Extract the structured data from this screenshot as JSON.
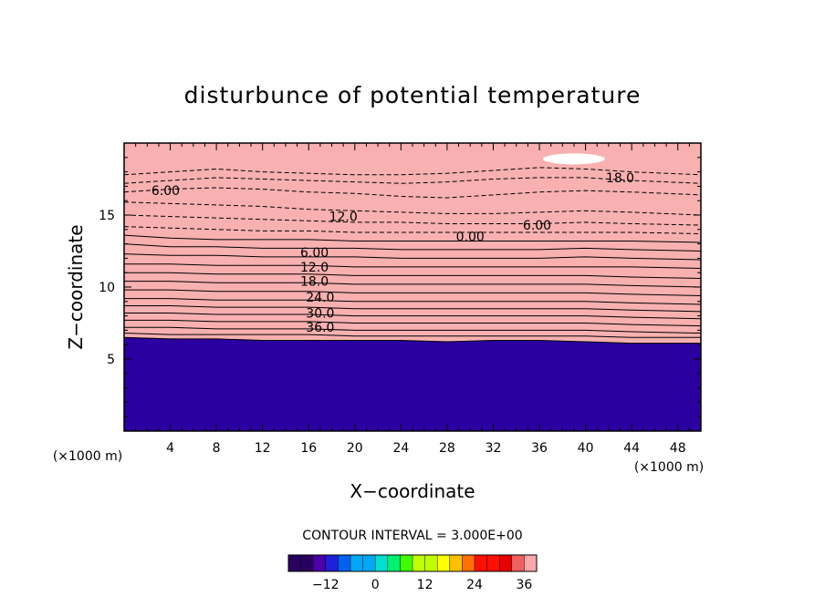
{
  "chart_data": {
    "type": "heatmap",
    "title": "disturbunce of potential temperature",
    "xlabel": "X−coordinate",
    "ylabel": "Z−coordinate",
    "x_unit": "(×1000 m)",
    "z_unit": "(×1000 m)",
    "xlim": [
      0,
      50
    ],
    "ylim": [
      0,
      20
    ],
    "x_ticks": [
      4,
      8,
      12,
      16,
      20,
      24,
      28,
      32,
      36,
      40,
      44,
      48
    ],
    "y_ticks": [
      5,
      10,
      15
    ],
    "contour_interval_text": "CONTOUR INTERVAL = 3.000E+00",
    "colorbar": {
      "min": -21,
      "max": 39,
      "tick_values": [
        -12,
        0,
        12,
        24,
        36
      ],
      "tick_labels": [
        "−12",
        "0",
        "12",
        "24",
        "36"
      ],
      "colors": [
        "#2a005f",
        "#4b00a8",
        "#2020d8",
        "#0060f0",
        "#00a8f8",
        "#00e0d0",
        "#00f070",
        "#40ff00",
        "#c0ff00",
        "#ffff00",
        "#ffc000",
        "#ff7000",
        "#ff1000",
        "#e80000",
        "#f06060",
        "#f8a8a8"
      ]
    },
    "contour_labels": [
      {
        "text": "6.00",
        "x": 3.6,
        "z": 16.7
      },
      {
        "text": "12.0",
        "x": 19.0,
        "z": 14.9
      },
      {
        "text": "18.0",
        "x": 43.0,
        "z": 17.6
      },
      {
        "text": "6.00",
        "x": 35.8,
        "z": 14.3
      },
      {
        "text": "0.00",
        "x": 30.0,
        "z": 13.5
      },
      {
        "text": "6.00",
        "x": 16.5,
        "z": 12.4
      },
      {
        "text": "12.0",
        "x": 16.5,
        "z": 11.4
      },
      {
        "text": "18.0",
        "x": 16.5,
        "z": 10.4
      },
      {
        "text": "24.0",
        "x": 17.0,
        "z": 9.3
      },
      {
        "text": "30.0",
        "x": 17.0,
        "z": 8.2
      },
      {
        "text": "36.0",
        "x": 17.0,
        "z": 7.2
      }
    ],
    "bands": [
      {
        "value": -18,
        "color": "#3a0088",
        "z": [
          17.8,
          18.0,
          18.2,
          18.0,
          17.9,
          17.8,
          17.8,
          17.9,
          18.1,
          18.3,
          18.2,
          18.0,
          17.8
        ]
      },
      {
        "value": -15,
        "color": "#5a10b8",
        "z": [
          17.2,
          17.4,
          17.6,
          17.5,
          17.4,
          17.3,
          17.2,
          17.3,
          17.5,
          17.6,
          17.6,
          17.4,
          17.2
        ]
      },
      {
        "value": -12,
        "color": "#1a2ad8",
        "z": [
          16.6,
          16.8,
          16.9,
          16.8,
          16.6,
          16.5,
          16.3,
          16.2,
          16.4,
          16.6,
          16.7,
          16.6,
          16.4
        ]
      },
      {
        "value": -9,
        "color": "#0a60f0",
        "z": [
          15.9,
          15.8,
          15.7,
          15.6,
          15.4,
          15.3,
          15.2,
          15.1,
          15.1,
          15.2,
          15.3,
          15.2,
          15.0
        ]
      },
      {
        "value": -6,
        "color": "#0a98f8",
        "z": [
          15.0,
          14.9,
          14.8,
          14.7,
          14.6,
          14.5,
          14.5,
          14.4,
          14.4,
          14.4,
          14.5,
          14.4,
          14.3
        ]
      },
      {
        "value": -3,
        "color": "#00c8f0",
        "z": [
          14.2,
          14.1,
          14.0,
          13.9,
          13.9,
          13.8,
          13.8,
          13.8,
          13.8,
          13.8,
          13.8,
          13.8,
          13.7
        ]
      },
      {
        "value": 0,
        "color": "#00e0b0",
        "z": [
          13.6,
          13.4,
          13.3,
          13.3,
          13.3,
          13.2,
          13.2,
          13.2,
          13.2,
          13.2,
          13.2,
          13.2,
          13.1
        ]
      },
      {
        "value": 3,
        "color": "#00f070",
        "z": [
          13.0,
          12.8,
          12.8,
          12.7,
          12.7,
          12.7,
          12.6,
          12.6,
          12.6,
          12.6,
          12.7,
          12.6,
          12.5
        ]
      },
      {
        "value": 6,
        "color": "#20ff20",
        "z": [
          12.3,
          12.2,
          12.2,
          12.1,
          12.1,
          12.1,
          12.0,
          12.0,
          12.0,
          12.0,
          12.1,
          12.0,
          11.9
        ]
      },
      {
        "value": 9,
        "color": "#70ff00",
        "z": [
          11.6,
          11.6,
          11.5,
          11.5,
          11.5,
          11.4,
          11.4,
          11.4,
          11.4,
          11.4,
          11.4,
          11.4,
          11.3
        ]
      },
      {
        "value": 12,
        "color": "#b0ff00",
        "z": [
          11.0,
          11.0,
          10.9,
          10.9,
          10.9,
          10.8,
          10.8,
          10.8,
          10.8,
          10.8,
          10.8,
          10.7,
          10.6
        ]
      },
      {
        "value": 15,
        "color": "#e8ff00",
        "z": [
          10.4,
          10.4,
          10.3,
          10.3,
          10.3,
          10.2,
          10.2,
          10.2,
          10.2,
          10.2,
          10.2,
          10.1,
          10.0
        ]
      },
      {
        "value": 18,
        "color": "#ffe000",
        "z": [
          9.8,
          9.8,
          9.7,
          9.7,
          9.7,
          9.6,
          9.6,
          9.6,
          9.6,
          9.6,
          9.6,
          9.5,
          9.4
        ]
      },
      {
        "value": 21,
        "color": "#ffb000",
        "z": [
          9.2,
          9.2,
          9.1,
          9.1,
          9.1,
          9.0,
          9.0,
          9.0,
          9.0,
          9.0,
          9.0,
          8.9,
          8.8
        ]
      },
      {
        "value": 24,
        "color": "#ff8000",
        "z": [
          8.7,
          8.7,
          8.6,
          8.6,
          8.6,
          8.5,
          8.5,
          8.5,
          8.5,
          8.5,
          8.5,
          8.4,
          8.3
        ]
      },
      {
        "value": 27,
        "color": "#ff4000",
        "z": [
          8.2,
          8.2,
          8.1,
          8.1,
          8.1,
          8.0,
          8.0,
          8.0,
          8.0,
          8.0,
          8.0,
          7.9,
          7.8
        ]
      },
      {
        "value": 30,
        "color": "#f01000",
        "z": [
          7.7,
          7.7,
          7.6,
          7.6,
          7.6,
          7.5,
          7.5,
          7.5,
          7.5,
          7.5,
          7.5,
          7.4,
          7.3
        ]
      },
      {
        "value": 33,
        "color": "#e83030",
        "z": [
          7.2,
          7.2,
          7.1,
          7.1,
          7.1,
          7.0,
          7.0,
          7.0,
          7.0,
          7.0,
          7.0,
          6.9,
          6.8
        ]
      },
      {
        "value": 36,
        "color": "#f07070",
        "z": [
          6.8,
          6.7,
          6.7,
          6.7,
          6.7,
          6.6,
          6.6,
          6.6,
          6.6,
          6.6,
          6.6,
          6.5,
          6.5
        ]
      },
      {
        "value": 39,
        "color": "#f8b0b0",
        "z": [
          6.5,
          6.4,
          6.4,
          6.3,
          6.3,
          6.3,
          6.3,
          6.2,
          6.3,
          6.3,
          6.2,
          6.1,
          6.1
        ]
      }
    ],
    "band_x": [
      0,
      4,
      8,
      12,
      16,
      20,
      24,
      28,
      32,
      36,
      40,
      44,
      50
    ]
  }
}
